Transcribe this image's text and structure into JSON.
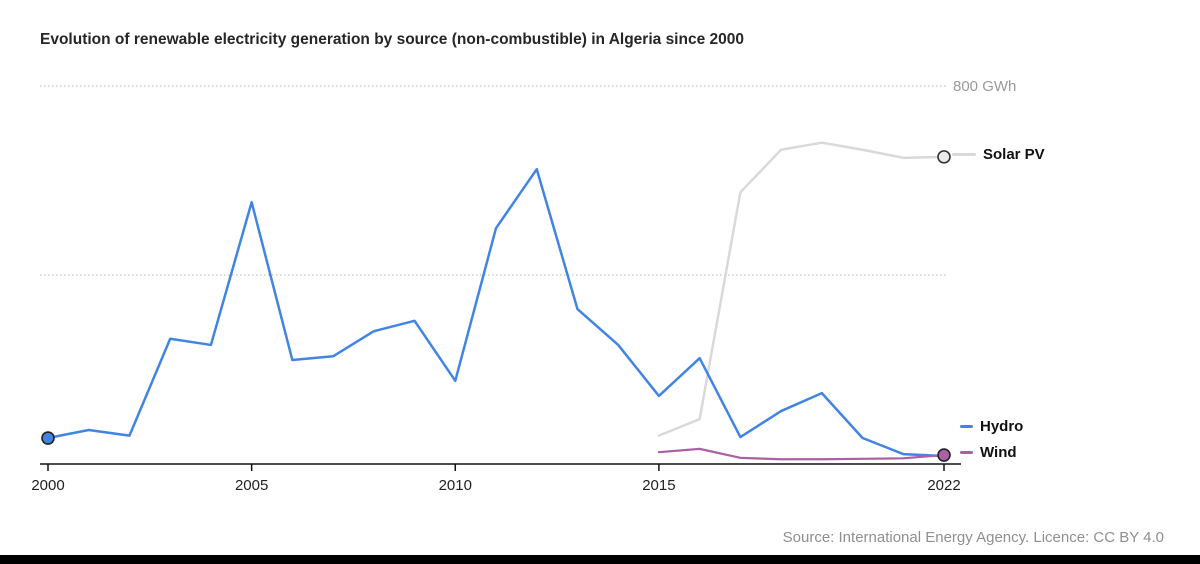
{
  "header": {
    "title": "Evolution of renewable electricity generation by source (non-combustible) in Algeria since 2000"
  },
  "chart_data": {
    "type": "line",
    "title": "Evolution of renewable electricity generation by source (non-combustible) in Algeria since 2000",
    "ylabel": "GWh",
    "unit_label": "800 GWh",
    "xlim": [
      2000,
      2022
    ],
    "ylim": [
      0,
      800
    ],
    "x_ticks": [
      2000,
      2005,
      2010,
      2015,
      2022
    ],
    "gridlines_gwh": [
      400,
      800
    ],
    "grid_color": "#b3b3b3",
    "axis_color": "#111111",
    "series": [
      {
        "name": "Solar PV",
        "color": "#d9d9d9",
        "width": 2.5,
        "marker": "end",
        "marker_fill": "#ececec",
        "marker_stroke": "#333333",
        "x": [
          2015,
          2016,
          2017,
          2018,
          2019,
          2020,
          2021,
          2022
        ],
        "values": [
          60,
          95,
          575,
          665,
          680,
          665,
          648,
          650
        ]
      },
      {
        "name": "Hydro",
        "color": "#4284e4",
        "width": 2.5,
        "marker": "start",
        "marker_fill": "#4284e4",
        "marker_stroke": "#222222",
        "x": [
          2000,
          2001,
          2002,
          2003,
          2004,
          2005,
          2006,
          2007,
          2008,
          2009,
          2010,
          2011,
          2012,
          2013,
          2014,
          2015,
          2016,
          2017,
          2018,
          2019,
          2020,
          2021,
          2022
        ],
        "values": [
          55,
          72,
          60,
          265,
          252,
          554,
          220,
          228,
          281,
          303,
          176,
          499,
          624,
          328,
          252,
          144,
          224,
          57,
          112,
          150,
          55,
          21,
          17
        ]
      },
      {
        "name": "Wind",
        "color": "#a960a5",
        "width": 2.2,
        "marker": "end",
        "marker_fill": "#a960a5",
        "marker_stroke": "#222222",
        "x": [
          2015,
          2016,
          2017,
          2018,
          2019,
          2020,
          2021,
          2022
        ],
        "values": [
          25,
          32,
          13,
          10,
          10,
          11,
          12,
          19
        ]
      }
    ],
    "legend_position": "right"
  },
  "footer": {
    "source": "Source: International Energy Agency. Licence: CC BY 4.0"
  }
}
